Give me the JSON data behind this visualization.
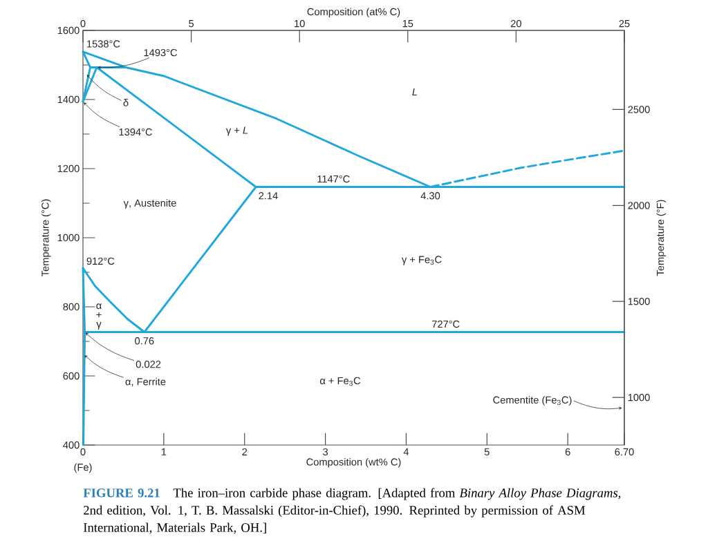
{
  "chart_data": {
    "type": "line",
    "xlabel": "Composition (wt% C)",
    "ylabel": "Temperature (°C)",
    "x2label": "Composition (at% C)",
    "y2label": "Temperature (°F)",
    "xlim": [
      0,
      6.7
    ],
    "ylim": [
      400,
      1600
    ],
    "x2lim": [
      0,
      25
    ],
    "y2lim": [
      752,
      2912
    ],
    "xticks": [
      0,
      1,
      2,
      3,
      4,
      5,
      6,
      {
        "value": 6.7,
        "label": "6.70"
      }
    ],
    "yticks": [
      400,
      {
        "value": 500,
        "label": null
      },
      600,
      {
        "value": 700,
        "label": null
      },
      800,
      {
        "value": 900,
        "label": null
      },
      1000,
      {
        "value": 1100,
        "label": null
      },
      1200,
      {
        "value": 1300,
        "label": null
      },
      1400,
      {
        "value": 1500,
        "label": null
      },
      1600
    ],
    "x2ticks": [
      0,
      5,
      10,
      15,
      20,
      25
    ],
    "y2ticks": [
      1000,
      1500,
      2000,
      2500
    ],
    "series": [
      {
        "color": "#1ea8dc",
        "line_style": "solid",
        "x": [
          0,
          0.53,
          1.0,
          2.4,
          3.4,
          4.3
        ],
        "values": [
          1538,
          1493,
          1468,
          1344,
          1238,
          1147
        ]
      },
      {
        "color": "#1ea8dc",
        "line_style": "solid",
        "x": [
          0,
          0.09,
          0
        ],
        "values": [
          1538,
          1493,
          1394
        ]
      },
      {
        "color": "#1ea8dc",
        "line_style": "solid",
        "x": [
          0,
          0.17,
          2.14
        ],
        "values": [
          1394,
          1493,
          1147
        ]
      },
      {
        "color": "#1ea8dc",
        "line_style": "solid",
        "x": [
          0.09,
          0.53
        ],
        "values": [
          1493,
          1493
        ]
      },
      {
        "color": "#1ea8dc",
        "line_style": "solid",
        "x": [
          2.14,
          6.7
        ],
        "values": [
          1147,
          1147
        ]
      },
      {
        "color": "#1ea8dc",
        "line_style": "dashed",
        "x": [
          4.3,
          5.41,
          6.07,
          6.7
        ],
        "values": [
          1147,
          1202,
          1228,
          1252
        ]
      },
      {
        "color": "#1ea8dc",
        "line_style": "solid",
        "x": [
          0,
          0.15,
          0.34,
          0.55,
          0.76
        ],
        "values": [
          912,
          860,
          814,
          765,
          727
        ]
      },
      {
        "color": "#1ea8dc",
        "line_style": "solid",
        "x": [
          0.76,
          2.14
        ],
        "values": [
          727,
          1147
        ]
      },
      {
        "color": "#1ea8dc",
        "line_style": "solid",
        "x": [
          0.022,
          6.7
        ],
        "values": [
          727,
          727
        ]
      },
      {
        "color": "#1ea8dc",
        "line_style": "solid",
        "x": [
          0,
          0.022,
          0.005
        ],
        "values": [
          912,
          727,
          400
        ]
      }
    ],
    "annotations": [
      {
        "text": "1538°C",
        "x": 0,
        "y": 1538
      },
      {
        "text": "1493°C",
        "x": 0.17,
        "y": 1493
      },
      {
        "text": "δ",
        "x": 0.04,
        "y": 1474
      },
      {
        "text": "1394°C",
        "x": 0,
        "y": 1394
      },
      "*L*",
      "γ + *L*",
      "γ, Austenite",
      {
        "text": "1147°C",
        "x": 3.1,
        "y": 1147
      },
      {
        "text": "2.14",
        "x": 2.14,
        "y": 1147
      },
      {
        "text": "4.30",
        "x": 4.3,
        "y": 1147
      },
      "γ + Fe$_{3}$C",
      {
        "text": "912°C",
        "x": 0,
        "y": 912
      },
      "α + γ",
      {
        "text": "727°C",
        "x": 4.49,
        "y": 727
      },
      {
        "text": "0.76",
        "x": 0.76,
        "y": 727
      },
      {
        "text": "0.022",
        "x": 0.022,
        "y": 727
      },
      {
        "text": "α, Ferrite",
        "x": 0.01,
        "y": 662
      },
      "α + Fe$_{3}$C",
      "Cementite (Fe$_{3}$C)",
      {
        "text": "(Fe)",
        "x": 0,
        "y": 400
      },
      "FIGURE 9.21",
      "The iron–iron carbide phase diagram. [Adapted from *Binary Alloy Phase Diagrams,* 2nd edition, Vol. 1, T. B. Massalski (Editor-in-Chief), 1990. Reprinted by permission of ASM International, Materials Park, OH.]"
    ]
  }
}
